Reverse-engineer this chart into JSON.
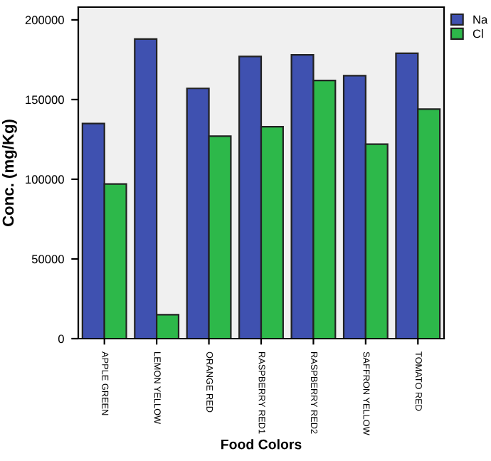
{
  "chart_data": {
    "type": "bar",
    "xlabel": "Food Colors",
    "ylabel": "Conc. (mg/Kg)",
    "categories": [
      "APPLE GREEN",
      "LEMON YELLOW",
      "ORANGE RED",
      "RASPBERRY RED1",
      "RASPBERRY RED2",
      "SAFFRON YELLOW",
      "TOMATO RED"
    ],
    "series": [
      {
        "name": "Na",
        "color": "#3f51b0",
        "values": [
          135000,
          188000,
          157000,
          177000,
          178000,
          165000,
          179000
        ]
      },
      {
        "name": "Cl",
        "color": "#2db84a",
        "values": [
          97000,
          15000,
          127000,
          133000,
          162000,
          122000,
          144000
        ]
      }
    ],
    "ylim": [
      0,
      208000
    ],
    "yticks": [
      0,
      50000,
      100000,
      150000,
      200000
    ],
    "grid": false,
    "legend": "top right"
  }
}
